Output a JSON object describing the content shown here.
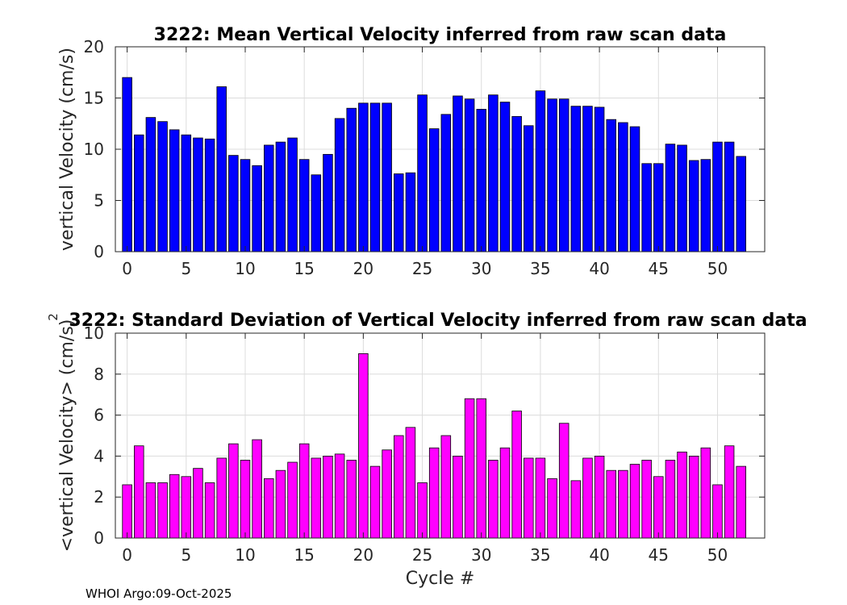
{
  "chart_data": [
    {
      "type": "bar",
      "title": "3222: Mean Vertical Velocity inferred from raw scan data",
      "xlabel": "",
      "ylabel": "vertical Velocity (cm/s)",
      "xlim": [
        -1,
        54
      ],
      "ylim": [
        0,
        20
      ],
      "xticks": [
        0,
        5,
        10,
        15,
        20,
        25,
        30,
        35,
        40,
        45,
        50
      ],
      "yticks": [
        0,
        5,
        10,
        15,
        20
      ],
      "grid": true,
      "color": "#0000ff",
      "x": [
        0,
        1,
        2,
        3,
        4,
        5,
        6,
        7,
        8,
        9,
        10,
        11,
        12,
        13,
        14,
        15,
        16,
        17,
        18,
        19,
        20,
        21,
        22,
        23,
        24,
        25,
        26,
        27,
        28,
        29,
        30,
        31,
        32,
        33,
        34,
        35,
        36,
        37,
        38,
        39,
        40,
        41,
        42,
        43,
        44,
        45,
        46,
        47,
        48,
        49,
        50,
        51,
        52
      ],
      "values": [
        17.0,
        11.4,
        13.1,
        12.7,
        11.9,
        11.4,
        11.1,
        11.0,
        16.1,
        9.4,
        9.0,
        8.4,
        10.4,
        10.7,
        11.1,
        9.0,
        7.5,
        9.5,
        13.0,
        14.0,
        14.5,
        14.5,
        14.5,
        7.6,
        7.7,
        15.3,
        12.0,
        13.4,
        15.2,
        14.9,
        13.9,
        15.3,
        14.6,
        13.2,
        12.3,
        15.7,
        14.9,
        14.9,
        14.2,
        14.2,
        14.1,
        12.9,
        12.6,
        12.2,
        8.6,
        8.6,
        10.5,
        10.4,
        8.9,
        9.0,
        10.7,
        10.7,
        9.3
      ]
    },
    {
      "type": "bar",
      "title": "3222: Standard Deviation of Vertical Velocity inferred from raw scan data",
      "xlabel": "Cycle #",
      "ylabel": "<vertical Velocity> (cm/s)",
      "ylabel_superscript": "2",
      "xlim": [
        -1,
        54
      ],
      "ylim": [
        0,
        10
      ],
      "xticks": [
        0,
        5,
        10,
        15,
        20,
        25,
        30,
        35,
        40,
        45,
        50
      ],
      "yticks": [
        0,
        2,
        4,
        6,
        8,
        10
      ],
      "grid": true,
      "color": "#ff00ff",
      "x": [
        0,
        1,
        2,
        3,
        4,
        5,
        6,
        7,
        8,
        9,
        10,
        11,
        12,
        13,
        14,
        15,
        16,
        17,
        18,
        19,
        20,
        21,
        22,
        23,
        24,
        25,
        26,
        27,
        28,
        29,
        30,
        31,
        32,
        33,
        34,
        35,
        36,
        37,
        38,
        39,
        40,
        41,
        42,
        43,
        44,
        45,
        46,
        47,
        48,
        49,
        50,
        51,
        52
      ],
      "values": [
        2.6,
        4.5,
        2.7,
        2.7,
        3.1,
        3.0,
        3.4,
        2.7,
        3.9,
        4.6,
        3.8,
        4.8,
        2.9,
        3.3,
        3.7,
        4.6,
        3.9,
        4.0,
        4.1,
        3.8,
        9.0,
        3.5,
        4.3,
        5.0,
        5.4,
        2.7,
        4.4,
        5.0,
        4.0,
        6.8,
        6.8,
        3.8,
        4.4,
        6.2,
        3.9,
        3.9,
        2.9,
        5.6,
        2.8,
        3.9,
        4.0,
        3.3,
        3.3,
        3.6,
        3.8,
        3.0,
        3.8,
        4.2,
        4.0,
        4.4,
        2.6,
        4.5,
        3.5
      ]
    }
  ],
  "footer": {
    "label": "WHOI Argo:09-Oct-2025"
  }
}
